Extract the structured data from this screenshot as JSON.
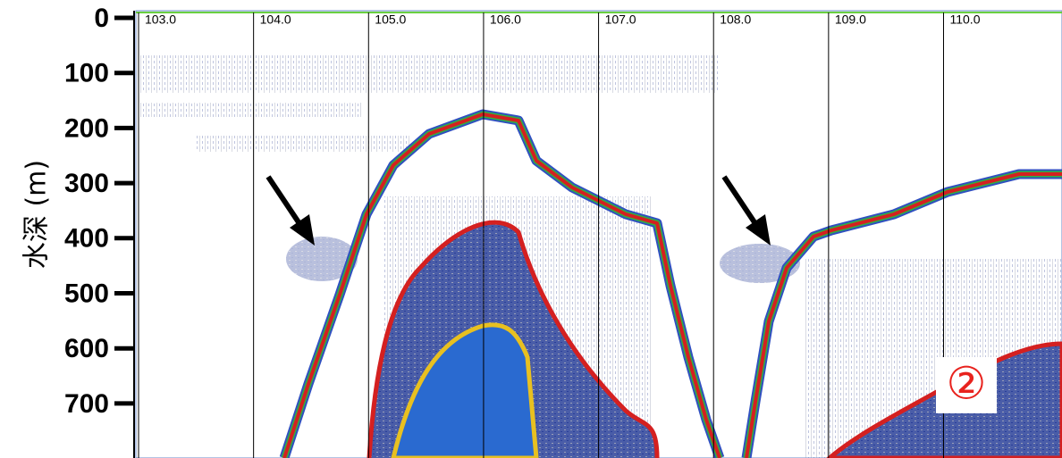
{
  "chart_data": {
    "type": "echogram",
    "ylabel": "水深 (m)",
    "ylim": [
      0,
      799
    ],
    "yticks": [
      0,
      100,
      200,
      300,
      400,
      500,
      600,
      700
    ],
    "xlim": [
      103,
      111.03
    ],
    "xticks": [
      {
        "value": 103,
        "label": "103.0"
      },
      {
        "value": 104,
        "label": "104.0"
      },
      {
        "value": 105,
        "label": "105.0"
      },
      {
        "value": 106,
        "label": "106.0"
      },
      {
        "value": 107,
        "label": "107.0"
      },
      {
        "value": 108,
        "label": "108.0"
      },
      {
        "value": 109,
        "label": "109.0"
      },
      {
        "value": 110,
        "label": "110.0"
      }
    ],
    "annotation": "②"
  }
}
